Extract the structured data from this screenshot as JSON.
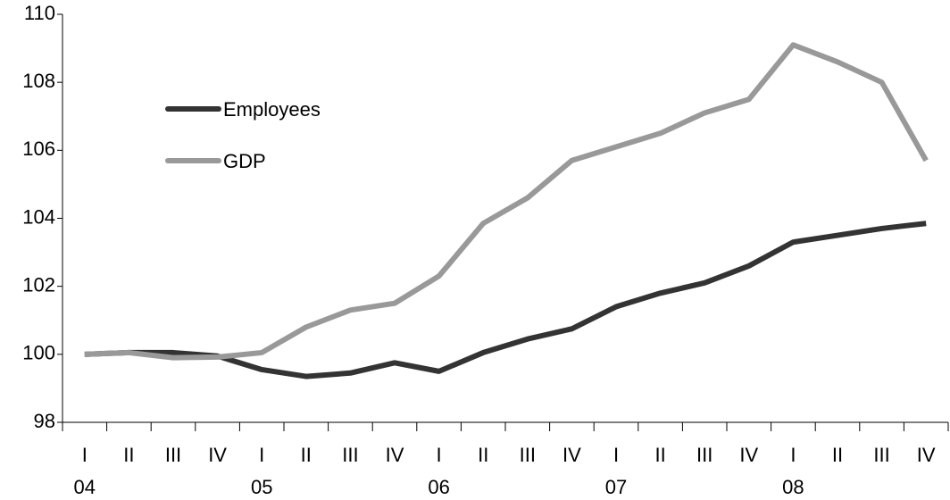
{
  "chart_data": {
    "type": "line",
    "categories": [
      "I",
      "II",
      "III",
      "IV",
      "I",
      "II",
      "III",
      "IV",
      "I",
      "II",
      "III",
      "IV",
      "I",
      "II",
      "III",
      "IV",
      "I",
      "II",
      "III",
      "IV"
    ],
    "year_labels": [
      "04",
      null,
      null,
      null,
      "05",
      null,
      null,
      null,
      "06",
      null,
      null,
      null,
      "07",
      null,
      null,
      null,
      "08",
      null,
      null,
      null
    ],
    "series": [
      {
        "name": "Employees",
        "color": "#333333",
        "values": [
          100,
          100.05,
          100.05,
          99.95,
          99.55,
          99.35,
          99.45,
          99.75,
          99.5,
          100.05,
          100.45,
          100.75,
          101.4,
          101.8,
          102.1,
          102.6,
          103.3,
          103.5,
          103.7,
          103.85
        ]
      },
      {
        "name": "GDP",
        "color": "#999999",
        "values": [
          100,
          100.05,
          99.9,
          99.92,
          100.05,
          100.8,
          101.3,
          101.5,
          102.3,
          103.85,
          104.6,
          105.7,
          106.1,
          106.5,
          107.1,
          107.5,
          109.1,
          108.6,
          108,
          105.7
        ]
      }
    ],
    "ylim": [
      98,
      110
    ],
    "yticks": [
      98,
      100,
      102,
      104,
      106,
      108,
      110
    ],
    "legend": "upper left",
    "grid": false
  }
}
